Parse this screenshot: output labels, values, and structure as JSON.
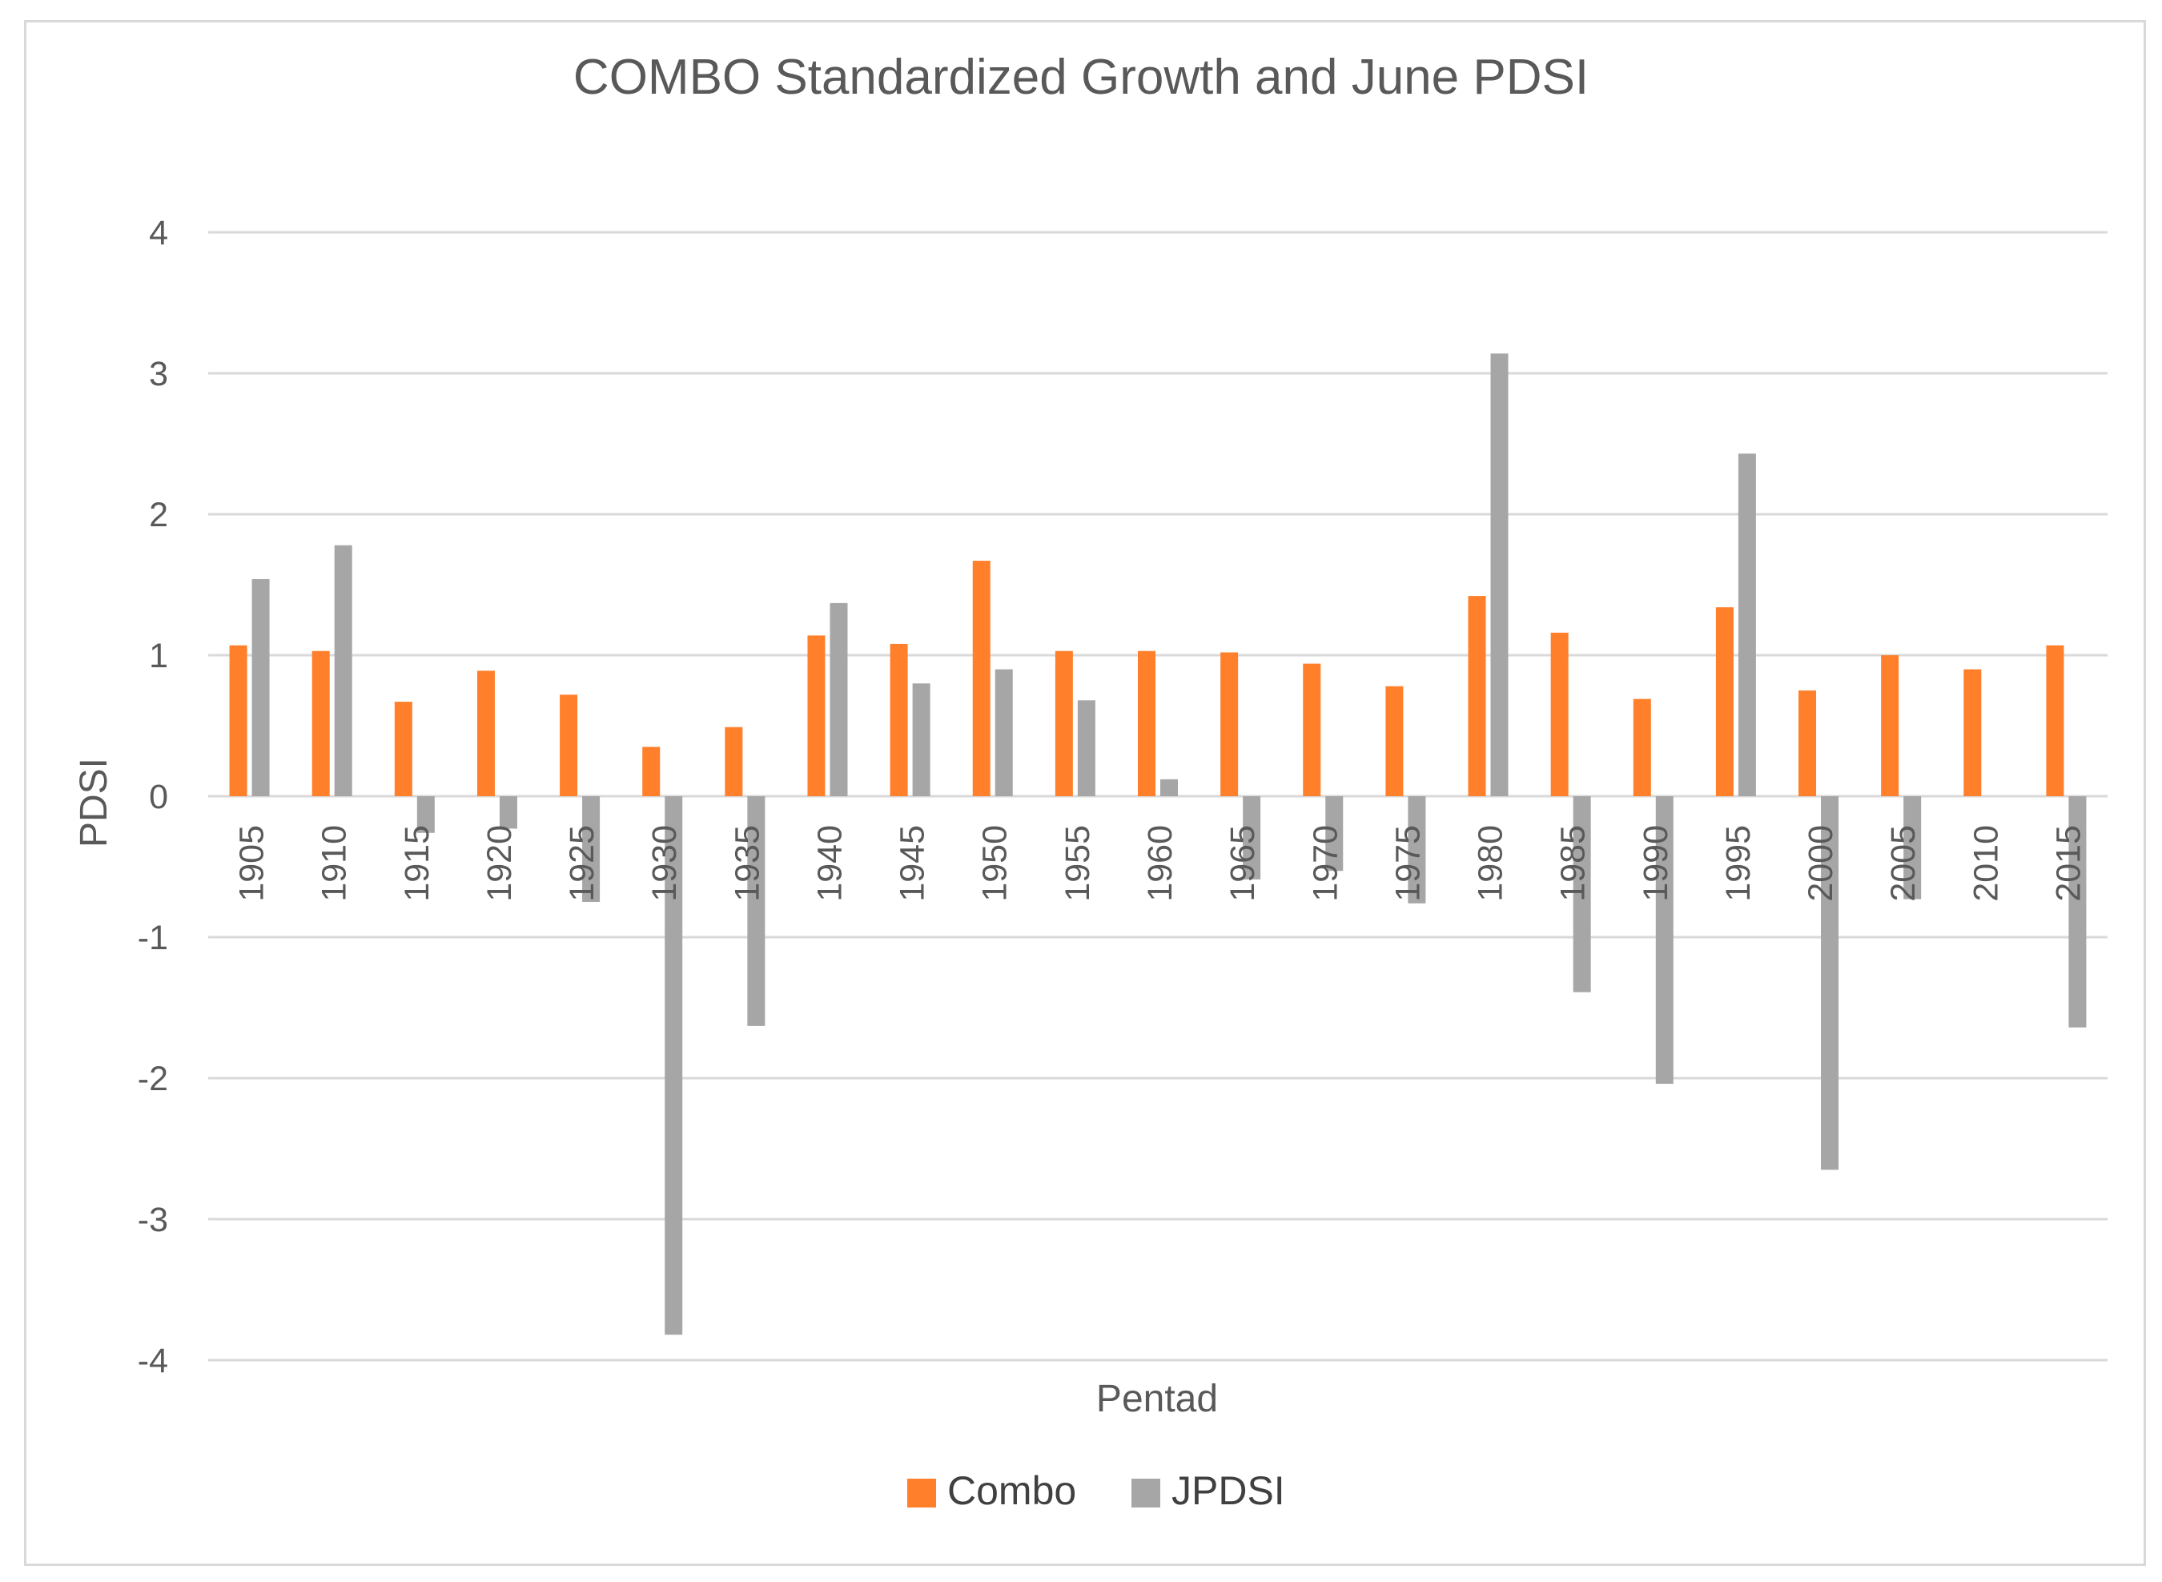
{
  "chart_data": {
    "type": "bar",
    "title": "COMBO Standardized Growth and June PDSI",
    "xlabel": "Pentad",
    "ylabel": "PDSI",
    "ylim": [
      -4,
      4
    ],
    "yticks": [
      4,
      3,
      2,
      1,
      0,
      -1,
      -2,
      -3,
      -4
    ],
    "grid": true,
    "legend_position": "bottom",
    "categories": [
      "1905",
      "1910",
      "1915",
      "1920",
      "1925",
      "1930",
      "1935",
      "1940",
      "1945",
      "1950",
      "1955",
      "1960",
      "1965",
      "1970",
      "1975",
      "1980",
      "1985",
      "1990",
      "1995",
      "2000",
      "2005",
      "2010",
      "2015"
    ],
    "series": [
      {
        "name": "Combo",
        "color": "#ff7f2a",
        "values": [
          1.07,
          1.03,
          0.67,
          0.89,
          0.72,
          0.35,
          0.49,
          1.14,
          1.08,
          1.67,
          1.03,
          1.03,
          1.02,
          0.94,
          0.78,
          1.42,
          1.16,
          0.69,
          1.34,
          0.75,
          1.0,
          0.9,
          1.07
        ]
      },
      {
        "name": "JPDSI",
        "color": "#a6a6a6",
        "values": [
          1.54,
          1.78,
          -0.26,
          -0.23,
          -0.75,
          -3.82,
          -1.63,
          1.37,
          0.8,
          0.9,
          0.68,
          0.12,
          -0.59,
          -0.53,
          -0.76,
          3.14,
          -1.39,
          -2.04,
          2.43,
          -2.65,
          -0.73,
          0.0,
          -1.64
        ]
      }
    ]
  }
}
